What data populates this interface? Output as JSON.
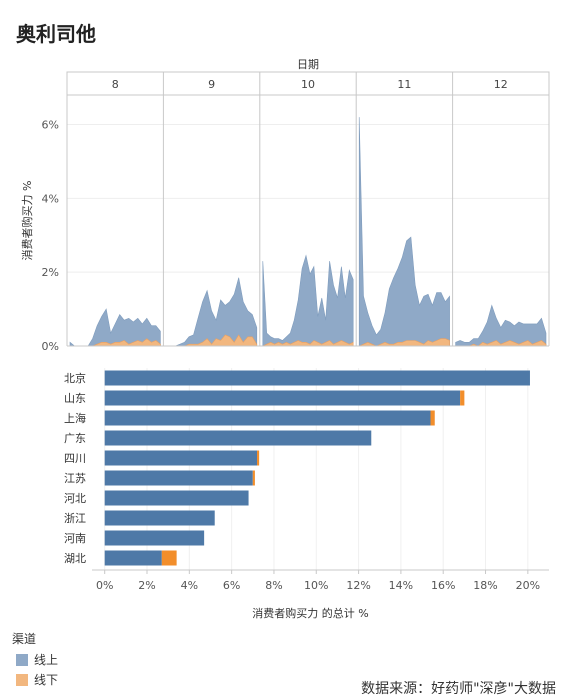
{
  "title": "奥利司他",
  "source": "数据来源：好药师\"深彦\"大数据",
  "colors": {
    "online": "#8fa9c7",
    "offline": "#f2b77f",
    "bar_online": "#4e79a7",
    "bar_offline": "#f28e2b"
  },
  "chart_data": [
    {
      "type": "area",
      "column_header": "日期",
      "facets": [
        "8",
        "9",
        "10",
        "11",
        "12"
      ],
      "ylabel": "消费者购买力 %",
      "ylim": [
        0,
        6.8
      ],
      "yticks": [
        "0%",
        "2%",
        "4%",
        "6%"
      ],
      "ytick_values": [
        0,
        2,
        4,
        6
      ],
      "stacked": true,
      "series": [
        {
          "name": "线上",
          "values": [
            [
              0.1,
              0.0,
              0.0,
              0.0,
              0.0,
              0.2,
              0.5,
              0.7,
              0.9,
              0.3,
              0.5,
              0.75,
              0.55,
              0.7,
              0.55,
              0.6,
              0.5,
              0.55,
              0.45,
              0.4,
              0.35
            ],
            [
              0.0,
              0.0,
              0.0,
              0.05,
              0.1,
              0.2,
              0.25,
              0.7,
              1.1,
              1.3,
              0.9,
              0.5,
              1.1,
              0.8,
              0.95,
              1.3,
              1.55,
              1.1,
              0.7,
              0.6,
              0.45
            ],
            [
              2.3,
              0.3,
              0.15,
              0.15,
              0.1,
              0.1,
              0.15,
              0.3,
              0.6,
              1.1,
              2.0,
              2.35,
              1.9,
              2.0,
              0.7,
              1.25,
              0.6,
              2.15,
              1.6,
              1.2,
              2.0,
              1.2,
              2.0,
              1.7
            ],
            [
              6.2,
              1.3,
              0.8,
              0.5,
              0.3,
              0.4,
              0.8,
              1.5,
              1.8,
              2.0,
              2.3,
              2.7,
              2.8,
              1.5,
              1.0,
              1.3,
              1.25,
              1.0,
              1.3,
              1.25,
              1.0,
              1.2
            ],
            [
              0.1,
              0.15,
              0.1,
              0.1,
              0.15,
              0.2,
              0.3,
              0.6,
              1.0,
              0.6,
              0.45,
              0.6,
              0.5,
              0.45,
              0.6,
              0.5,
              0.45,
              0.55,
              0.5,
              0.6,
              0.3
            ]
          ]
        },
        {
          "name": "线下",
          "values": [
            [
              0.0,
              0.0,
              0.0,
              0.0,
              0.0,
              0.0,
              0.05,
              0.1,
              0.1,
              0.05,
              0.1,
              0.1,
              0.15,
              0.05,
              0.1,
              0.15,
              0.1,
              0.2,
              0.1,
              0.15,
              0.05
            ],
            [
              0.0,
              0.0,
              0.0,
              0.0,
              0.0,
              0.05,
              0.05,
              0.05,
              0.1,
              0.2,
              0.05,
              0.2,
              0.15,
              0.3,
              0.25,
              0.1,
              0.3,
              0.1,
              0.25,
              0.25,
              0.05
            ],
            [
              0.0,
              0.05,
              0.1,
              0.05,
              0.1,
              0.05,
              0.1,
              0.05,
              0.1,
              0.15,
              0.1,
              0.1,
              0.05,
              0.15,
              0.1,
              0.05,
              0.1,
              0.15,
              0.05,
              0.1,
              0.15,
              0.1,
              0.05,
              0.1
            ],
            [
              0.0,
              0.05,
              0.1,
              0.05,
              0.0,
              0.05,
              0.1,
              0.05,
              0.05,
              0.1,
              0.1,
              0.15,
              0.15,
              0.15,
              0.1,
              0.05,
              0.15,
              0.1,
              0.15,
              0.2,
              0.2,
              0.15
            ],
            [
              0.0,
              0.0,
              0.0,
              0.0,
              0.05,
              0.0,
              0.1,
              0.05,
              0.1,
              0.15,
              0.05,
              0.1,
              0.15,
              0.1,
              0.05,
              0.1,
              0.15,
              0.05,
              0.1,
              0.15,
              0.05
            ]
          ]
        }
      ]
    },
    {
      "type": "bar",
      "orientation": "horizontal",
      "stacked": true,
      "categories": [
        "北京",
        "山东",
        "上海",
        "广东",
        "四川",
        "江苏",
        "河北",
        "浙江",
        "河南",
        "湖北"
      ],
      "series": [
        {
          "name": "线上",
          "values": [
            20.1,
            16.8,
            15.4,
            12.6,
            7.2,
            7.0,
            6.8,
            5.2,
            4.7,
            2.7
          ]
        },
        {
          "name": "线下",
          "values": [
            0.0,
            0.2,
            0.2,
            0.0,
            0.1,
            0.1,
            0.0,
            0.0,
            0.0,
            0.7
          ]
        }
      ],
      "xlabel": "消费者购买力 的总计 %",
      "xlim": [
        -0.6,
        21.0
      ],
      "xticks": [
        "0%",
        "2%",
        "4%",
        "6%",
        "8%",
        "10%",
        "12%",
        "14%",
        "16%",
        "18%",
        "20%"
      ],
      "xtick_values": [
        0,
        2,
        4,
        6,
        8,
        10,
        12,
        14,
        16,
        18,
        20
      ]
    }
  ],
  "legend": {
    "title": "渠道",
    "items": [
      "线上",
      "线下"
    ]
  }
}
